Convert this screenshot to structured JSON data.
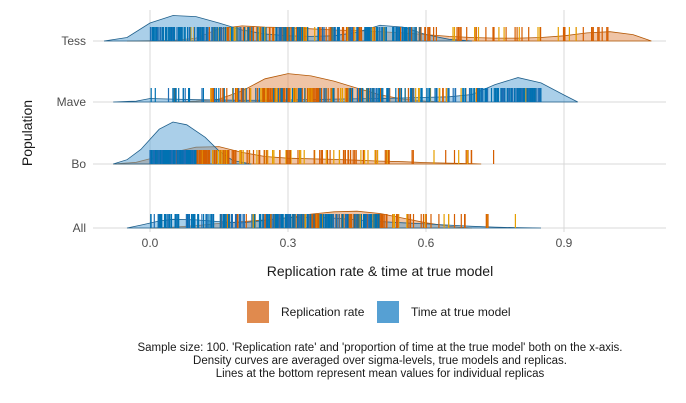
{
  "chart_data": {
    "type": "area",
    "subtype": "ridgeline-density-with-rug",
    "xlabel": "Replication rate & time at true model",
    "ylabel": "Population",
    "xlim": [
      -0.12,
      1.13
    ],
    "x_ticks": [
      "0.0",
      "0.3",
      "0.6",
      "0.9"
    ],
    "x_tick_values": [
      0.0,
      0.3,
      0.6,
      0.9
    ],
    "grid": true,
    "legend_position": "bottom",
    "categories": [
      "Tess",
      "Mave",
      "Bo",
      "All"
    ],
    "series": [
      {
        "name": "Replication rate",
        "color": "#e08a4e",
        "rug_colors": [
          "#d55e00",
          "#e69f00"
        ],
        "densities": {
          "Tess": [
            [
              -0.05,
              0
            ],
            [
              0.05,
              0.02
            ],
            [
              0.1,
              0.1
            ],
            [
              0.15,
              0.42
            ],
            [
              0.2,
              0.52
            ],
            [
              0.25,
              0.48
            ],
            [
              0.3,
              0.46
            ],
            [
              0.35,
              0.42
            ],
            [
              0.4,
              0.38
            ],
            [
              0.45,
              0.36
            ],
            [
              0.5,
              0.32
            ],
            [
              0.55,
              0.28
            ],
            [
              0.6,
              0.22
            ],
            [
              0.65,
              0.16
            ],
            [
              0.7,
              0.12
            ],
            [
              0.75,
              0.1
            ],
            [
              0.8,
              0.1
            ],
            [
              0.85,
              0.12
            ],
            [
              0.9,
              0.18
            ],
            [
              0.95,
              0.28
            ],
            [
              1.0,
              0.32
            ],
            [
              1.05,
              0.22
            ],
            [
              1.09,
              0
            ]
          ],
          "Mave": [
            [
              0.05,
              0
            ],
            [
              0.1,
              0.03
            ],
            [
              0.15,
              0.1
            ],
            [
              0.2,
              0.38
            ],
            [
              0.25,
              0.8
            ],
            [
              0.3,
              0.98
            ],
            [
              0.35,
              0.9
            ],
            [
              0.4,
              0.72
            ],
            [
              0.45,
              0.48
            ],
            [
              0.5,
              0.25
            ],
            [
              0.55,
              0.1
            ],
            [
              0.6,
              0.03
            ],
            [
              0.65,
              0
            ]
          ],
          "Bo": [
            [
              -0.08,
              0
            ],
            [
              -0.03,
              0.06
            ],
            [
              0.0,
              0.18
            ],
            [
              0.05,
              0.4
            ],
            [
              0.1,
              0.58
            ],
            [
              0.15,
              0.6
            ],
            [
              0.2,
              0.4
            ],
            [
              0.25,
              0.26
            ],
            [
              0.3,
              0.2
            ],
            [
              0.35,
              0.18
            ],
            [
              0.4,
              0.16
            ],
            [
              0.45,
              0.13
            ],
            [
              0.5,
              0.1
            ],
            [
              0.55,
              0.08
            ],
            [
              0.6,
              0.05
            ],
            [
              0.65,
              0.03
            ],
            [
              0.7,
              0.01
            ],
            [
              0.72,
              0
            ]
          ],
          "All": [
            [
              0.0,
              0
            ],
            [
              0.05,
              0.03
            ],
            [
              0.1,
              0.08
            ],
            [
              0.15,
              0.16
            ],
            [
              0.2,
              0.22
            ],
            [
              0.25,
              0.28
            ],
            [
              0.3,
              0.36
            ],
            [
              0.35,
              0.48
            ],
            [
              0.4,
              0.56
            ],
            [
              0.45,
              0.58
            ],
            [
              0.5,
              0.5
            ],
            [
              0.55,
              0.34
            ],
            [
              0.6,
              0.18
            ],
            [
              0.65,
              0.06
            ],
            [
              0.7,
              0
            ]
          ]
        }
      },
      {
        "name": "Time at true model",
        "color": "#56a0d3",
        "rug_colors": [
          "#0072b2",
          "#1f6fb4"
        ],
        "densities": {
          "Tess": [
            [
              -0.1,
              0
            ],
            [
              -0.05,
              0.12
            ],
            [
              0.0,
              0.62
            ],
            [
              0.05,
              0.88
            ],
            [
              0.1,
              0.84
            ],
            [
              0.15,
              0.62
            ],
            [
              0.2,
              0.38
            ],
            [
              0.25,
              0.24
            ],
            [
              0.3,
              0.18
            ],
            [
              0.35,
              0.16
            ],
            [
              0.4,
              0.18
            ],
            [
              0.45,
              0.3
            ],
            [
              0.5,
              0.54
            ],
            [
              0.55,
              0.48
            ],
            [
              0.6,
              0.22
            ],
            [
              0.65,
              0.06
            ],
            [
              0.7,
              0
            ]
          ],
          "Mave": [
            [
              -0.08,
              0
            ],
            [
              -0.03,
              0.03
            ],
            [
              0.0,
              0.12
            ],
            [
              0.05,
              0.1
            ],
            [
              0.1,
              0.08
            ],
            [
              0.2,
              0.06
            ],
            [
              0.3,
              0.07
            ],
            [
              0.4,
              0.1
            ],
            [
              0.5,
              0.12
            ],
            [
              0.6,
              0.16
            ],
            [
              0.65,
              0.18
            ],
            [
              0.7,
              0.26
            ],
            [
              0.75,
              0.6
            ],
            [
              0.8,
              0.84
            ],
            [
              0.85,
              0.66
            ],
            [
              0.9,
              0.24
            ],
            [
              0.93,
              0
            ]
          ],
          "Bo": [
            [
              -0.08,
              0
            ],
            [
              -0.05,
              0.15
            ],
            [
              -0.02,
              0.5
            ],
            [
              0.02,
              1.2
            ],
            [
              0.05,
              1.45
            ],
            [
              0.08,
              1.35
            ],
            [
              0.12,
              0.92
            ],
            [
              0.15,
              0.45
            ],
            [
              0.18,
              0.12
            ],
            [
              0.22,
              0
            ]
          ],
          "All": [
            [
              -0.05,
              0
            ],
            [
              -0.02,
              0.1
            ],
            [
              0.02,
              0.24
            ],
            [
              0.05,
              0.3
            ],
            [
              0.1,
              0.28
            ],
            [
              0.15,
              0.22
            ],
            [
              0.2,
              0.18
            ],
            [
              0.25,
              0.26
            ],
            [
              0.3,
              0.36
            ],
            [
              0.35,
              0.38
            ],
            [
              0.4,
              0.34
            ],
            [
              0.45,
              0.28
            ],
            [
              0.5,
              0.22
            ],
            [
              0.55,
              0.18
            ],
            [
              0.6,
              0.14
            ],
            [
              0.65,
              0.1
            ],
            [
              0.7,
              0.06
            ],
            [
              0.75,
              0.03
            ],
            [
              0.8,
              0.01
            ],
            [
              0.85,
              0
            ]
          ]
        }
      }
    ],
    "rug_ranges": {
      "Replication rate": {
        "Tess": [
          0.02,
          1.0
        ],
        "Mave": [
          0.05,
          0.85
        ],
        "Bo": [
          0.0,
          0.75
        ],
        "All": [
          0.15,
          0.83
        ]
      },
      "Time at true model": {
        "Tess": [
          0.0,
          0.6
        ],
        "Mave": [
          0.0,
          0.85
        ],
        "Bo": [
          0.0,
          0.1
        ],
        "All": [
          0.0,
          0.5
        ]
      }
    },
    "caption": [
      "Sample size: 100. 'Replication rate' and 'proportion of time at the true model' both on the x-axis.",
      "Density curves are averaged over sigma-levels, true models and replicas.",
      "Lines at the bottom represent mean values for individual replicas"
    ]
  }
}
